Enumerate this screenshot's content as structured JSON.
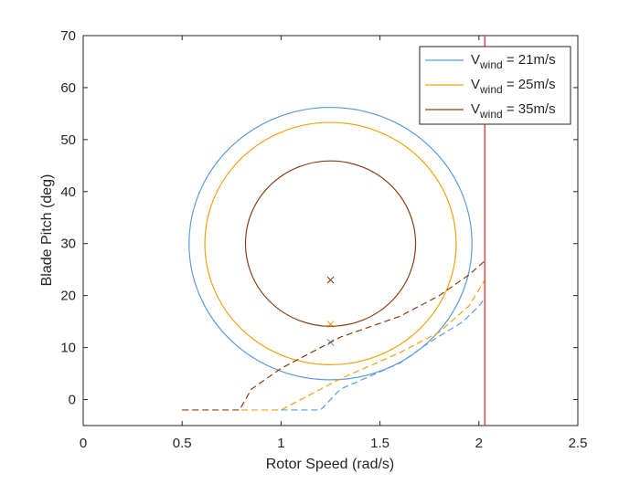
{
  "chart_data": {
    "type": "line",
    "xlabel": "Rotor Speed (rad/s)",
    "ylabel": "Blade Pitch (deg)",
    "xlim": [
      0,
      2.5
    ],
    "ylim": [
      -5,
      70
    ],
    "xticks": [
      0,
      0.5,
      1,
      1.5,
      2,
      2.5
    ],
    "xtick_labels": [
      "0",
      "0.5",
      "1",
      "1.5",
      "2",
      "2.5"
    ],
    "yticks": [
      0,
      10,
      20,
      30,
      40,
      50,
      60,
      70
    ],
    "ytick_labels": [
      "0",
      "10",
      "20",
      "30",
      "40",
      "50",
      "60",
      "70"
    ],
    "grid": false,
    "legend_position": "top-right",
    "vertical_line": {
      "x": 2.03,
      "color": "#e8484a"
    },
    "series": [
      {
        "legend_main": "V",
        "legend_sub": "wind",
        "legend_suffix": " = 21m/s",
        "color": "#5b9be0",
        "circle": {
          "center": [
            1.25,
            30
          ],
          "radius_x": 0.715,
          "radius_y": 26.2
        },
        "marker": [
          1.25,
          11
        ],
        "dashed": [
          [
            1.0,
            -2
          ],
          [
            1.2,
            -2
          ],
          [
            1.3,
            2
          ],
          [
            1.6,
            7
          ],
          [
            1.75,
            11
          ],
          [
            1.92,
            15
          ],
          [
            2.0,
            18
          ],
          [
            2.02,
            19
          ]
        ]
      },
      {
        "legend_main": "V",
        "legend_sub": "wind",
        "legend_suffix": " = 25m/s",
        "color": "#f2a30f",
        "circle": {
          "center": [
            1.25,
            30
          ],
          "radius_x": 0.635,
          "radius_y": 23.3
        },
        "marker": [
          1.25,
          14.5
        ],
        "dashed": [
          [
            0.8,
            -2
          ],
          [
            1.0,
            -2
          ],
          [
            1.1,
            0
          ],
          [
            1.3,
            4
          ],
          [
            1.6,
            9
          ],
          [
            1.8,
            13
          ],
          [
            1.95,
            18
          ],
          [
            2.03,
            23
          ]
        ]
      },
      {
        "legend_main": "V",
        "legend_sub": "wind",
        "legend_suffix": " = 35m/s",
        "color": "#8b3d12",
        "circle": {
          "center": [
            1.25,
            30
          ],
          "radius_x": 0.43,
          "radius_y": 15.9
        },
        "marker": [
          1.25,
          23
        ],
        "dashed": [
          [
            0.5,
            -2
          ],
          [
            0.79,
            -2
          ],
          [
            0.85,
            2
          ],
          [
            1.0,
            6
          ],
          [
            1.3,
            12
          ],
          [
            1.6,
            16
          ],
          [
            1.8,
            20
          ],
          [
            1.95,
            24
          ],
          [
            2.04,
            27
          ]
        ]
      }
    ]
  }
}
